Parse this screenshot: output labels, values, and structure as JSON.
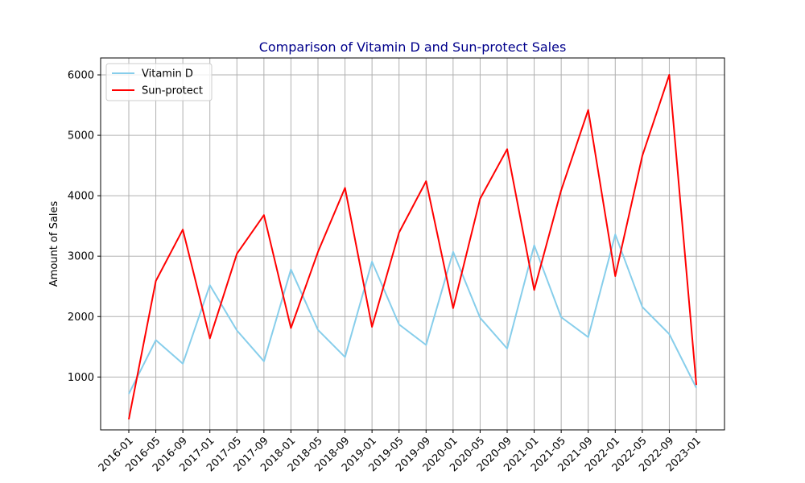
{
  "chart_data": {
    "type": "line",
    "title": "Comparison of Vitamin D and Sun-protect Sales",
    "title_color": "#00008b",
    "xlabel": "",
    "ylabel": "Amount of Sales",
    "x": [
      "2016-01",
      "2016-05",
      "2016-09",
      "2017-01",
      "2017-05",
      "2017-09",
      "2018-01",
      "2018-05",
      "2018-09",
      "2019-01",
      "2019-05",
      "2019-09",
      "2020-01",
      "2020-05",
      "2020-09",
      "2021-01",
      "2021-05",
      "2021-09",
      "2022-01",
      "2022-05",
      "2022-09",
      "2023-01"
    ],
    "yticks": [
      1000,
      2000,
      3000,
      4000,
      5000,
      6000
    ],
    "ylim": [
      125,
      6280
    ],
    "grid": true,
    "legend_position": "top-left",
    "series": [
      {
        "name": "Vitamin D",
        "color": "#87ceeb",
        "values": [
          720,
          1610,
          1220,
          2520,
          1770,
          1260,
          2780,
          1780,
          1330,
          2910,
          1870,
          1530,
          3070,
          1980,
          1470,
          3180,
          1990,
          1660,
          3360,
          2160,
          1710,
          820
        ]
      },
      {
        "name": "Sun-protect",
        "color": "#ff0000",
        "values": [
          300,
          2590,
          3440,
          1640,
          3040,
          3680,
          1810,
          3070,
          4130,
          1830,
          3390,
          4240,
          2140,
          3950,
          4770,
          2440,
          4090,
          5420,
          2670,
          4660,
          6000,
          870
        ]
      }
    ]
  }
}
